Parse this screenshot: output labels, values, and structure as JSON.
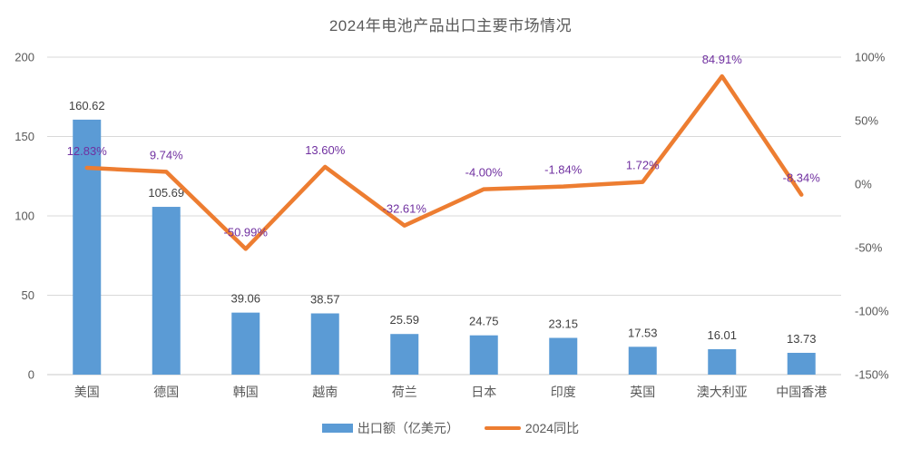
{
  "colors": {
    "bar": "#5B9BD5",
    "line": "#ED7D31",
    "bar_label": "#404040",
    "line_label": "#7030A0",
    "axis_label": "#595959",
    "gridline": "#D9D9D9",
    "axis_line": "#C9C9C9",
    "title": "#595959",
    "background": "#FFFFFF"
  },
  "chart_data": {
    "type": "combo-bar-line",
    "title": "2024年电池产品出口主要市场情况",
    "categories": [
      "美国",
      "德国",
      "韩国",
      "越南",
      "荷兰",
      "日本",
      "印度",
      "英国",
      "澳大利亚",
      "中国香港"
    ],
    "series": [
      {
        "name": "出口额（亿美元）",
        "type": "bar",
        "axis": "left",
        "values": [
          160.62,
          105.69,
          39.06,
          38.57,
          25.59,
          24.75,
          23.15,
          17.53,
          16.01,
          13.73
        ],
        "value_labels": [
          "160.62",
          "105.69",
          "39.06",
          "38.57",
          "25.59",
          "24.75",
          "23.15",
          "17.53",
          "16.01",
          "13.73"
        ]
      },
      {
        "name": "2024同比",
        "type": "line",
        "axis": "right",
        "unit": "%",
        "values": [
          12.83,
          9.74,
          -50.99,
          13.6,
          -32.61,
          -4.0,
          -1.84,
          1.72,
          84.91,
          -8.34
        ],
        "value_labels": [
          "12.83%",
          "9.74%",
          "-50.99%",
          "13.60%",
          "-32.61%",
          "-4.00%",
          "-1.84%",
          "1.72%",
          "84.91%",
          "-8.34%"
        ]
      }
    ],
    "left_axis": {
      "min": 0,
      "max": 200,
      "ticks": [
        {
          "value": 200,
          "label": "200"
        },
        {
          "value": 150,
          "label": "150"
        },
        {
          "value": 100,
          "label": "100"
        },
        {
          "value": 50,
          "label": "50"
        },
        {
          "value": 0,
          "label": "0"
        }
      ]
    },
    "right_axis": {
      "min": -150,
      "max": 100,
      "ticks": [
        {
          "value": 100,
          "label": "100%"
        },
        {
          "value": 50,
          "label": "50%"
        },
        {
          "value": 0,
          "label": "0%"
        },
        {
          "value": -50,
          "label": "-50%"
        },
        {
          "value": -100,
          "label": "-100%"
        },
        {
          "value": -150,
          "label": "-150%"
        }
      ]
    },
    "grid": "horizontal",
    "legend_position": "bottom"
  }
}
